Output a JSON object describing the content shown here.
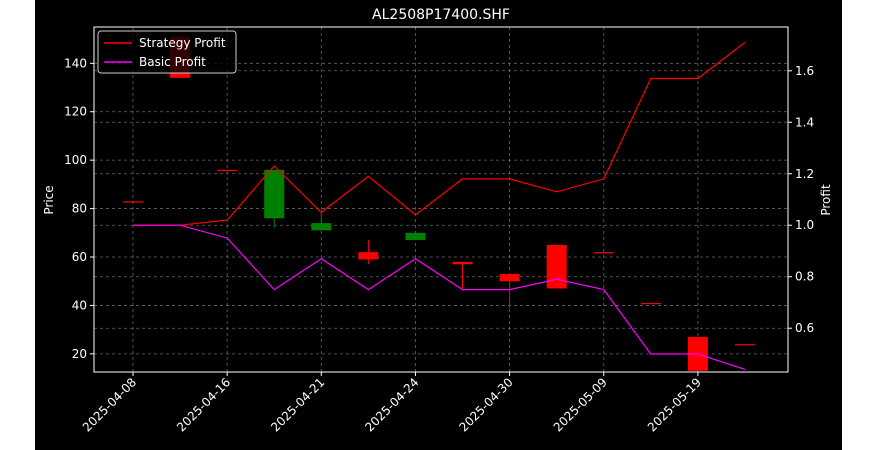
{
  "chart_data": {
    "type": "candlestick",
    "title": "AL2508P17400.SHF",
    "ylabel": "Price",
    "ylabel_right": "Profit",
    "ylim": [
      12.5,
      155
    ],
    "ylim_right": [
      0.43,
      1.77
    ],
    "y_ticks": [
      20,
      40,
      60,
      80,
      100,
      120,
      140
    ],
    "y_ticks_right": [
      0.6,
      0.8,
      1.0,
      1.2,
      1.4,
      1.6
    ],
    "x_tick_labels": [
      "2025-04-08",
      "2025-04-16",
      "2025-04-21",
      "2025-04-24",
      "2025-04-30",
      "2025-05-09",
      "2025-05-19"
    ],
    "x_tick_positions": [
      0,
      2,
      4,
      6,
      8,
      10,
      12
    ],
    "grid": true,
    "legend_position": "top-left",
    "candles": [
      {
        "i": 0,
        "open": 83,
        "high": 83,
        "low": 83,
        "close": 83,
        "color": "#ff0000"
      },
      {
        "i": 1,
        "open": 151,
        "high": 152,
        "low": 134,
        "close": 134,
        "color": "#ff0000"
      },
      {
        "i": 2,
        "open": 96,
        "high": 96,
        "low": 96,
        "close": 96,
        "color": "#ff0000"
      },
      {
        "i": 3,
        "open": 76,
        "high": 96,
        "low": 72,
        "close": 96,
        "color": "#008000"
      },
      {
        "i": 4,
        "open": 71,
        "high": 79,
        "low": 71,
        "close": 74,
        "color": "#008000"
      },
      {
        "i": 5,
        "open": 62,
        "high": 67,
        "low": 57,
        "close": 59,
        "color": "#ff0000"
      },
      {
        "i": 6,
        "open": 67,
        "high": 70,
        "low": 67,
        "close": 70,
        "color": "#008000"
      },
      {
        "i": 7,
        "open": 58,
        "high": 58,
        "low": 47,
        "close": 57,
        "color": "#ff0000"
      },
      {
        "i": 8,
        "open": 53,
        "high": 53,
        "low": 39,
        "close": 50,
        "color": "#ff0000"
      },
      {
        "i": 9,
        "open": 65,
        "high": 65,
        "low": 47,
        "close": 47,
        "color": "#ff0000"
      },
      {
        "i": 10,
        "open": 62,
        "high": 62,
        "low": 62,
        "close": 62,
        "color": "#ff0000"
      },
      {
        "i": 11,
        "open": 41,
        "high": 41,
        "low": 41,
        "close": 41,
        "color": "#ff0000"
      },
      {
        "i": 12,
        "open": 27,
        "high": 27,
        "low": 13,
        "close": 13,
        "color": "#ff0000"
      },
      {
        "i": 13,
        "open": 24,
        "high": 24,
        "low": 24,
        "close": 24,
        "color": "#ff0000"
      }
    ],
    "series": [
      {
        "name": "Strategy Profit",
        "color": "#ff0000",
        "axis": "right",
        "x": [
          0,
          1,
          2,
          3,
          4,
          5,
          6,
          7,
          8,
          9,
          10,
          11,
          12,
          13
        ],
        "values": [
          1.0,
          1.0,
          1.02,
          1.23,
          1.05,
          1.19,
          1.04,
          1.18,
          1.18,
          1.13,
          1.18,
          1.57,
          1.57,
          1.71
        ]
      },
      {
        "name": "Basic Profit",
        "color": "#ff00ff",
        "axis": "right",
        "x": [
          0,
          1,
          2,
          3,
          4,
          5,
          6,
          7,
          8,
          9,
          10,
          11,
          12,
          13
        ],
        "values": [
          1.0,
          1.0,
          0.95,
          0.75,
          0.87,
          0.75,
          0.87,
          0.75,
          0.75,
          0.79,
          0.75,
          0.5,
          0.5,
          0.44
        ]
      }
    ]
  }
}
